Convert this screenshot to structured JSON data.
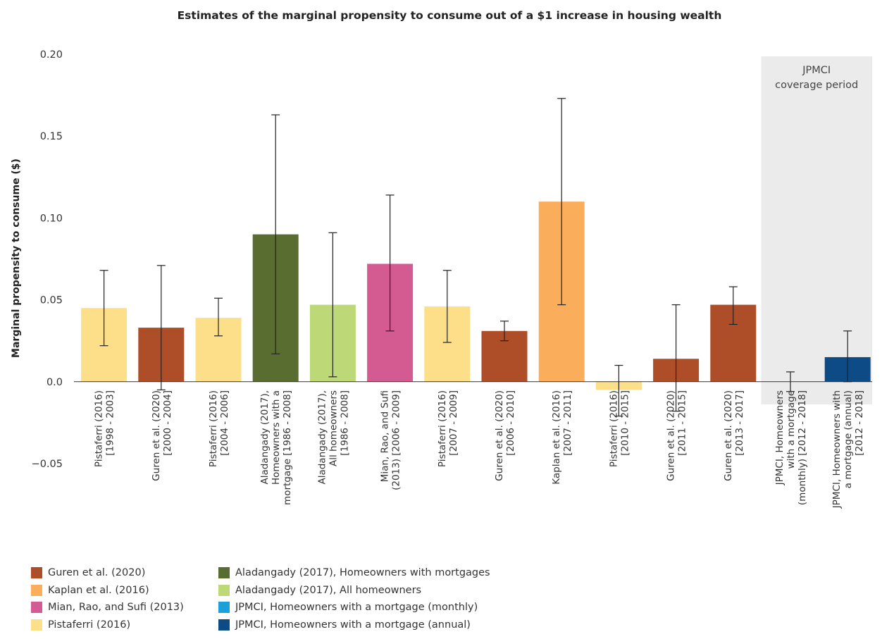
{
  "chart_data": {
    "type": "bar",
    "title": "Estimates of the marginal propensity to consume out of a $1 increase in housing wealth",
    "ylabel": "Marginal propensity to consume ($)",
    "xlabel": "",
    "ylim": [
      -0.05,
      0.2
    ],
    "yticks": [
      "0.20",
      "0.15",
      "0.10",
      "0.05",
      "0.0",
      "−0.05"
    ],
    "yticks_values": [
      0.2,
      0.15,
      0.1,
      0.05,
      0.0,
      -0.05
    ],
    "grid": false,
    "shaded_region": {
      "label_lines": [
        "JPMCI",
        "coverage period"
      ],
      "from_category": 12,
      "to_category": 13
    },
    "bars": [
      {
        "label_lines": [
          "Pistaferri (2016)",
          "[1998 - 2003]"
        ],
        "value": 0.045,
        "err_low": 0.022,
        "err_high": 0.068,
        "series": "Pistaferri (2016)",
        "color": "#FDDF8A"
      },
      {
        "label_lines": [
          "Guren et al. (2020)",
          "[2000 - 2004]"
        ],
        "value": 0.033,
        "err_low": -0.005,
        "err_high": 0.071,
        "series": "Guren et al. (2020)",
        "color": "#AE4E28"
      },
      {
        "label_lines": [
          "Pistaferri (2016)",
          "[2004 - 2006]"
        ],
        "value": 0.039,
        "err_low": 0.028,
        "err_high": 0.051,
        "series": "Pistaferri (2016)",
        "color": "#FDDF8A"
      },
      {
        "label_lines": [
          "Aladangady (2017),",
          "Homeowners with a",
          "mortgage [1986 - 2008]"
        ],
        "value": 0.09,
        "err_low": 0.017,
        "err_high": 0.163,
        "series": "Aladangady (2017), Homeowners with mortgages",
        "color": "#5A6D31"
      },
      {
        "label_lines": [
          "Aladangady (2017),",
          "All homeowners",
          "[1986 - 2008]"
        ],
        "value": 0.047,
        "err_low": 0.003,
        "err_high": 0.091,
        "series": "Aladangady (2017), All homeowners",
        "color": "#BDD876"
      },
      {
        "label_lines": [
          "Mian, Rao, and Sufi",
          "(2013) [2006 - 2009]"
        ],
        "value": 0.072,
        "err_low": 0.031,
        "err_high": 0.114,
        "series": "Mian, Rao, and Sufi (2013)",
        "color": "#D45A92"
      },
      {
        "label_lines": [
          "Pistaferri (2016)",
          "[2007 - 2009]"
        ],
        "value": 0.046,
        "err_low": 0.024,
        "err_high": 0.068,
        "series": "Pistaferri (2016)",
        "color": "#FDDF8A"
      },
      {
        "label_lines": [
          "Guren et al. (2020)",
          "[2006 - 2010]"
        ],
        "value": 0.031,
        "err_low": 0.025,
        "err_high": 0.037,
        "series": "Guren et al. (2020)",
        "color": "#AE4E28"
      },
      {
        "label_lines": [
          "Kaplan et al. (2016)",
          "[2007 - 2011]"
        ],
        "value": 0.11,
        "err_low": 0.047,
        "err_high": 0.173,
        "series": "Kaplan et al. (2016)",
        "color": "#FAAE5B"
      },
      {
        "label_lines": [
          "Pistaferri (2016)",
          "[2010 - 2015]"
        ],
        "value": -0.005,
        "err_low": -0.021,
        "err_high": 0.01,
        "series": "Pistaferri (2016)",
        "color": "#FDDF8A"
      },
      {
        "label_lines": [
          "Guren et al. (2020)",
          "[2011 - 2015]"
        ],
        "value": 0.014,
        "err_low": -0.018,
        "err_high": 0.047,
        "series": "Guren et al. (2020)",
        "color": "#AE4E28"
      },
      {
        "label_lines": [
          "Guren et al. (2020)",
          "[2013 - 2017]"
        ],
        "value": 0.047,
        "err_low": 0.035,
        "err_high": 0.058,
        "series": "Guren et al. (2020)",
        "color": "#AE4E28"
      },
      {
        "label_lines": [
          "JPMCI, Homeowners",
          "with a mortgage",
          "(monthly) [2012 - 2018]"
        ],
        "value": 0.0,
        "err_low": -0.006,
        "err_high": 0.006,
        "series": "JPMCI, Homeowners with a mortgage (monthly)",
        "color": "#1BA0DA"
      },
      {
        "label_lines": [
          "JPMCI, Homeowners with",
          "a mortgage (annual)",
          "[2012 - 2018]"
        ],
        "value": 0.015,
        "err_low": 0.0,
        "err_high": 0.031,
        "series": "JPMCI, Homeowners with a mortgage (annual)",
        "color": "#0D4B86"
      }
    ],
    "legend": [
      {
        "label": "Guren et al. (2020)",
        "color": "#AE4E28"
      },
      {
        "label": "Kaplan et al. (2016)",
        "color": "#FAAE5B"
      },
      {
        "label": "Mian, Rao, and Sufi (2013)",
        "color": "#D45A92"
      },
      {
        "label": "Pistaferri (2016)",
        "color": "#FDDF8A"
      },
      {
        "label": "Aladangady (2017), Homeowners with mortgages",
        "color": "#5A6D31"
      },
      {
        "label": "Aladangady (2017), All homeowners",
        "color": "#BDD876"
      },
      {
        "label": "JPMCI, Homeowners with a mortgage (monthly)",
        "color": "#1BA0DA"
      },
      {
        "label": "JPMCI, Homeowners with a mortgage (annual)",
        "color": "#0D4B86"
      }
    ],
    "legend_placement": "bottom-left",
    "colors": {
      "axis": "#333333",
      "shade": "#EBEBEB",
      "error_bar": "#222222"
    }
  }
}
